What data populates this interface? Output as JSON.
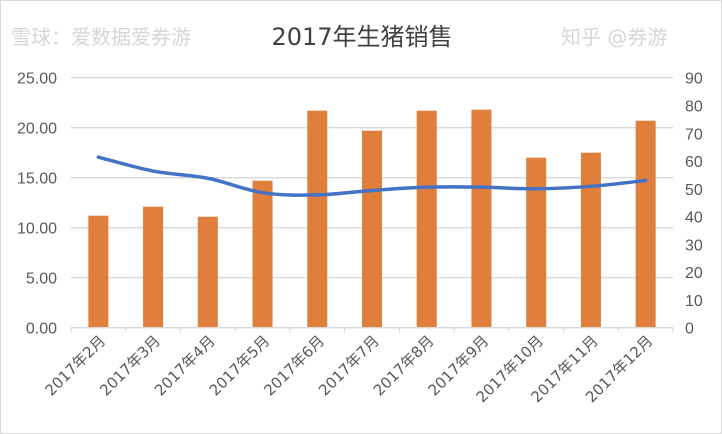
{
  "chart_data": {
    "type": "bar+line",
    "title": "2017年生猪销售",
    "categories": [
      "2017年2月",
      "2017年3月",
      "2017年4月",
      "2017年5月",
      "2017年6月",
      "2017年7月",
      "2017年8月",
      "2017年9月",
      "2017年10月",
      "2017年11月",
      "2017年12月"
    ],
    "series": [
      {
        "type": "bar",
        "axis": "left",
        "color": "#E07E3C",
        "values": [
          11.2,
          12.1,
          11.1,
          14.7,
          21.7,
          19.7,
          21.7,
          21.8,
          17.0,
          17.5,
          20.7
        ]
      },
      {
        "type": "line",
        "axis": "right",
        "color": "#4472C4",
        "values": [
          61.4,
          56.4,
          53.8,
          48.6,
          47.8,
          49.4,
          50.6,
          50.6,
          50.0,
          50.9,
          53.0
        ]
      }
    ],
    "left_axis": {
      "ylim": [
        0,
        25
      ],
      "ticks": [
        "0.00",
        "5.00",
        "10.00",
        "15.00",
        "20.00",
        "25.00"
      ]
    },
    "right_axis": {
      "ylim": [
        0,
        90
      ],
      "ticks": [
        "0",
        "10",
        "20",
        "30",
        "40",
        "50",
        "60",
        "70",
        "80",
        "90"
      ]
    },
    "grid": true,
    "legend": "none"
  },
  "watermark": {
    "line1": "雪球：爱数据爱券游",
    "line2": "知乎 @券游"
  }
}
